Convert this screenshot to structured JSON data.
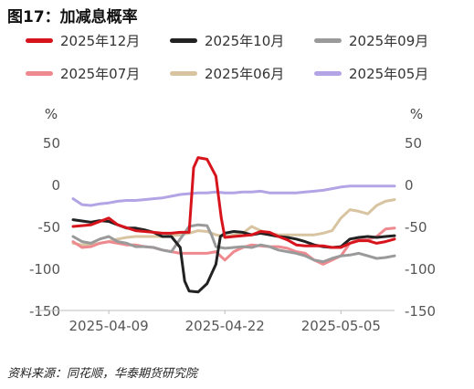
{
  "title": "图17：加减息概率",
  "source": "资料来源：同花顺，华泰期货研究院",
  "chart_data": {
    "type": "line",
    "title": "图17：加减息概率",
    "y_unit_left": "%",
    "y_unit_right": "%",
    "ylim": [
      -150,
      50
    ],
    "yticks": [
      50,
      0,
      -50,
      -100,
      -150
    ],
    "ytick_labels": [
      "50",
      "0",
      "-50",
      "-100",
      "-150"
    ],
    "xlim": [
      0,
      36
    ],
    "xticks": [
      {
        "x": 4,
        "label": "2025-04-09"
      },
      {
        "x": 17,
        "label": "2025-04-22"
      },
      {
        "x": 30,
        "label": "2025-05-05"
      }
    ],
    "legend_position": "top",
    "series": [
      {
        "name": "2025年12月",
        "color": "#d7131c",
        "points": [
          [
            0,
            -50
          ],
          [
            2,
            -48
          ],
          [
            4,
            -40
          ],
          [
            5,
            -48
          ],
          [
            7,
            -55
          ],
          [
            9,
            -57
          ],
          [
            10,
            -58
          ],
          [
            11,
            -58
          ],
          [
            12,
            -57
          ],
          [
            13,
            -57
          ],
          [
            13.5,
            20
          ],
          [
            14,
            32
          ],
          [
            15,
            30
          ],
          [
            16,
            10
          ],
          [
            16.6,
            -40
          ],
          [
            17,
            -63
          ],
          [
            18,
            -62
          ],
          [
            19,
            -61
          ],
          [
            20,
            -60
          ],
          [
            21,
            -56
          ],
          [
            22,
            -57
          ],
          [
            23,
            -62
          ],
          [
            24,
            -66
          ],
          [
            25,
            -72
          ],
          [
            26,
            -73
          ],
          [
            27,
            -73
          ],
          [
            28,
            -73
          ],
          [
            29,
            -75
          ],
          [
            30,
            -75
          ],
          [
            31,
            -70
          ],
          [
            32,
            -67
          ],
          [
            33,
            -67
          ],
          [
            34,
            -70
          ],
          [
            35,
            -68
          ],
          [
            36,
            -65
          ]
        ]
      },
      {
        "name": "2025年10月",
        "color": "#222222",
        "points": [
          [
            0,
            -42
          ],
          [
            2,
            -45
          ],
          [
            3,
            -43
          ],
          [
            4,
            -44
          ],
          [
            5,
            -48
          ],
          [
            6,
            -52
          ],
          [
            7,
            -52
          ],
          [
            8,
            -54
          ],
          [
            9,
            -57
          ],
          [
            10,
            -62
          ],
          [
            11,
            -62
          ],
          [
            12,
            -75
          ],
          [
            12.5,
            -115
          ],
          [
            13,
            -127
          ],
          [
            14,
            -128
          ],
          [
            15,
            -118
          ],
          [
            16,
            -95
          ],
          [
            16.5,
            -62
          ],
          [
            17,
            -58
          ],
          [
            18,
            -56
          ],
          [
            19,
            -57
          ],
          [
            20,
            -60
          ],
          [
            21,
            -58
          ],
          [
            22,
            -60
          ],
          [
            23,
            -62
          ],
          [
            24,
            -63
          ],
          [
            25,
            -65
          ],
          [
            26,
            -68
          ],
          [
            27,
            -72
          ],
          [
            28,
            -74
          ],
          [
            29,
            -75
          ],
          [
            30,
            -74
          ],
          [
            31,
            -65
          ],
          [
            32,
            -63
          ],
          [
            33,
            -62
          ],
          [
            34,
            -63
          ],
          [
            35,
            -62
          ],
          [
            36,
            -61
          ]
        ]
      },
      {
        "name": "2025年09月",
        "color": "#9a9a9a",
        "points": [
          [
            0,
            -62
          ],
          [
            1,
            -68
          ],
          [
            2,
            -70
          ],
          [
            3,
            -65
          ],
          [
            4,
            -62
          ],
          [
            5,
            -68
          ],
          [
            6,
            -70
          ],
          [
            7,
            -74
          ],
          [
            8,
            -74
          ],
          [
            9,
            -75
          ],
          [
            10,
            -78
          ],
          [
            11,
            -80
          ],
          [
            12,
            -65
          ],
          [
            13,
            -50
          ],
          [
            14,
            -48
          ],
          [
            15,
            -49
          ],
          [
            15.5,
            -60
          ],
          [
            16,
            -74
          ],
          [
            17,
            -76
          ],
          [
            18,
            -75
          ],
          [
            19,
            -74
          ],
          [
            20,
            -75
          ],
          [
            21,
            -72
          ],
          [
            22,
            -74
          ],
          [
            23,
            -78
          ],
          [
            24,
            -80
          ],
          [
            25,
            -82
          ],
          [
            26,
            -85
          ],
          [
            27,
            -90
          ],
          [
            28,
            -92
          ],
          [
            29,
            -88
          ],
          [
            30,
            -85
          ],
          [
            31,
            -84
          ],
          [
            32,
            -82
          ],
          [
            33,
            -85
          ],
          [
            34,
            -88
          ],
          [
            35,
            -87
          ],
          [
            36,
            -85
          ]
        ]
      },
      {
        "name": "2025年07月",
        "color": "#ee8a8f",
        "points": [
          [
            0,
            -68
          ],
          [
            1,
            -75
          ],
          [
            2,
            -74
          ],
          [
            3,
            -70
          ],
          [
            4,
            -68
          ],
          [
            5,
            -70
          ],
          [
            6,
            -72
          ],
          [
            7,
            -72
          ],
          [
            8,
            -74
          ],
          [
            9,
            -75
          ],
          [
            10,
            -78
          ],
          [
            11,
            -80
          ],
          [
            12,
            -82
          ],
          [
            13,
            -82
          ],
          [
            14,
            -82
          ],
          [
            15,
            -82
          ],
          [
            16,
            -80
          ],
          [
            17,
            -90
          ],
          [
            18,
            -80
          ],
          [
            19,
            -75
          ],
          [
            20,
            -72
          ],
          [
            21,
            -73
          ],
          [
            22,
            -74
          ],
          [
            23,
            -74
          ],
          [
            24,
            -76
          ],
          [
            25,
            -80
          ],
          [
            26,
            -82
          ],
          [
            27,
            -90
          ],
          [
            28,
            -95
          ],
          [
            29,
            -90
          ],
          [
            30,
            -85
          ],
          [
            31,
            -70
          ],
          [
            32,
            -65
          ],
          [
            33,
            -66
          ],
          [
            34,
            -62
          ],
          [
            35,
            -53
          ],
          [
            36,
            -52
          ]
        ]
      },
      {
        "name": "2025年06月",
        "color": "#d8c4a0",
        "points": [
          [
            0,
            -70
          ],
          [
            1,
            -72
          ],
          [
            2,
            -72
          ],
          [
            3,
            -70
          ],
          [
            4,
            -68
          ],
          [
            5,
            -65
          ],
          [
            6,
            -63
          ],
          [
            7,
            -62
          ],
          [
            8,
            -62
          ],
          [
            9,
            -62
          ],
          [
            10,
            -62
          ],
          [
            11,
            -61
          ],
          [
            12,
            -60
          ],
          [
            13,
            -58
          ],
          [
            14,
            -55
          ],
          [
            15,
            -56
          ],
          [
            16,
            -60
          ],
          [
            17,
            -62
          ],
          [
            18,
            -60
          ],
          [
            19,
            -58
          ],
          [
            20,
            -50
          ],
          [
            21,
            -55
          ],
          [
            22,
            -58
          ],
          [
            23,
            -60
          ],
          [
            24,
            -60
          ],
          [
            25,
            -60
          ],
          [
            26,
            -60
          ],
          [
            27,
            -60
          ],
          [
            28,
            -58
          ],
          [
            29,
            -55
          ],
          [
            30,
            -40
          ],
          [
            31,
            -30
          ],
          [
            32,
            -32
          ],
          [
            33,
            -35
          ],
          [
            34,
            -25
          ],
          [
            35,
            -20
          ],
          [
            36,
            -18
          ]
        ]
      },
      {
        "name": "2025年05月",
        "color": "#b3a4e6",
        "points": [
          [
            0,
            -17
          ],
          [
            1,
            -24
          ],
          [
            2,
            -25
          ],
          [
            3,
            -23
          ],
          [
            4,
            -22
          ],
          [
            5,
            -20
          ],
          [
            6,
            -19
          ],
          [
            7,
            -19
          ],
          [
            8,
            -18
          ],
          [
            9,
            -17
          ],
          [
            10,
            -16
          ],
          [
            11,
            -14
          ],
          [
            12,
            -12
          ],
          [
            13,
            -11
          ],
          [
            14,
            -10
          ],
          [
            15,
            -10
          ],
          [
            16,
            -9
          ],
          [
            17,
            -10
          ],
          [
            18,
            -10
          ],
          [
            19,
            -9
          ],
          [
            20,
            -9
          ],
          [
            21,
            -8
          ],
          [
            22,
            -10
          ],
          [
            23,
            -10
          ],
          [
            24,
            -10
          ],
          [
            25,
            -10
          ],
          [
            26,
            -9
          ],
          [
            27,
            -8
          ],
          [
            28,
            -7
          ],
          [
            29,
            -5
          ],
          [
            30,
            -3
          ],
          [
            31,
            -2
          ],
          [
            32,
            -2
          ],
          [
            33,
            -2
          ],
          [
            34,
            -2
          ],
          [
            35,
            -2
          ],
          [
            36,
            -2
          ]
        ]
      }
    ]
  }
}
